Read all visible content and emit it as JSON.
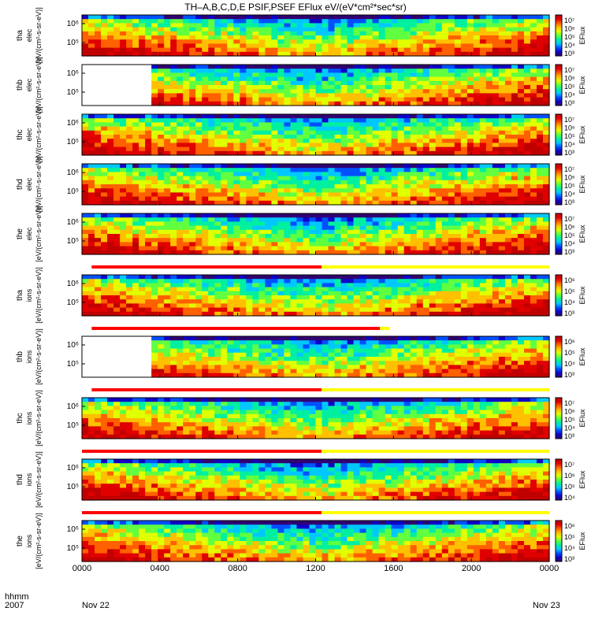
{
  "title": "TH–A,B,C,D,E PSIF,PSEF EFlux eV/(eV*cm²*sec*sr)",
  "footer": {
    "row1": "hhmm",
    "row2": "2007",
    "date_start": "Nov 22",
    "date_end": "Nov 23"
  },
  "colors": {
    "colormap": [
      "#300070",
      "#1000c8",
      "#0050ff",
      "#00c8ff",
      "#00f0a0",
      "#60ff40",
      "#e0ff00",
      "#ffc000",
      "#ff6000",
      "#e00000",
      "#c00000"
    ],
    "bar_red": "#ff0000",
    "bar_yellow": "#ffff00"
  },
  "chart_data": {
    "type": "heatmap",
    "title": "TH–A,B,C,D,E PSIF,PSEF EFlux eV/(eV*cm²*sec*sr)",
    "xlabel": "hhmm",
    "x_range": [
      0,
      2400
    ],
    "x_ticks": [
      "0000",
      "0400",
      "0800",
      "1200",
      "1600",
      "2000",
      "0000"
    ],
    "colorbar_label": "EFlux",
    "panels": [
      {
        "name": "tha",
        "species": "elec",
        "ylabel": "[eV/(cm²-s-sr-eV)]",
        "yticks": [
          "10⁶",
          "10⁵"
        ],
        "colorbar_ticks": [
          "10⁷",
          "10⁶",
          "10⁵",
          "10⁴",
          "10³"
        ],
        "data_start": 0
      },
      {
        "name": "thb",
        "species": "elec",
        "ylabel": "[eV/(cm²-s-sr-eV)]",
        "yticks": [
          "10⁶",
          "10⁵"
        ],
        "colorbar_ticks": [
          "10⁷",
          "10⁶",
          "10⁵",
          "10⁴",
          "10³"
        ],
        "data_start": 350
      },
      {
        "name": "thc",
        "species": "elec",
        "ylabel": "[eV/(cm²-s-sr-eV)]",
        "yticks": [
          "10⁶",
          "10⁵"
        ],
        "colorbar_ticks": [
          "10⁷",
          "10⁶",
          "10⁵",
          "10⁴",
          "10³"
        ],
        "data_start": 0
      },
      {
        "name": "thd",
        "species": "elec",
        "ylabel": "[eV/(cm²-s-sr-eV)]",
        "yticks": [
          "10⁶",
          "10⁵"
        ],
        "colorbar_ticks": [
          "10⁷",
          "10⁶",
          "10⁵",
          "10⁴",
          "10³"
        ],
        "data_start": 0
      },
      {
        "name": "the",
        "species": "elec",
        "ylabel": "[eV/(cm²-s-sr-eV)]",
        "yticks": [
          "10⁶",
          "10⁵"
        ],
        "colorbar_ticks": [
          "10⁷",
          "10⁶",
          "10⁵",
          "10⁴",
          "10³"
        ],
        "data_start": 0
      },
      {
        "name": "tha",
        "species": "ions",
        "ylabel": "[eV/(cm²-s-sr-eV)]",
        "yticks": [
          "10⁶",
          "10⁵"
        ],
        "colorbar_ticks": [
          "10⁶",
          "10⁵",
          "10⁴",
          "10³"
        ],
        "data_start": 0
      },
      {
        "name": "thb",
        "species": "ions",
        "ylabel": "[eV/(cm²-s-sr-eV)]",
        "yticks": [
          "10⁶",
          "10⁵"
        ],
        "colorbar_ticks": [
          "10⁶",
          "10⁵",
          "10⁴",
          "10³"
        ],
        "data_start": 350
      },
      {
        "name": "thc",
        "species": "ions",
        "ylabel": "[eV/(cm²-s-sr-eV)]",
        "yticks": [
          "10⁶",
          "10⁵"
        ],
        "colorbar_ticks": [
          "10⁷",
          "10⁶",
          "10⁵",
          "10⁴",
          "10³"
        ],
        "data_start": 0
      },
      {
        "name": "thd",
        "species": "ions",
        "ylabel": "[eV/(cm²-s-sr-eV)]",
        "yticks": [
          "10⁶",
          "10⁵"
        ],
        "colorbar_ticks": [
          "10⁷",
          "10⁶",
          "10⁵",
          "10⁴"
        ],
        "data_start": 0
      },
      {
        "name": "the",
        "species": "ions",
        "ylabel": "[eV/(cm²-s-sr-eV)]",
        "yticks": [
          "10⁶",
          "10⁵"
        ],
        "colorbar_ticks": [
          "10⁶",
          "10⁵",
          "10⁴",
          "10³"
        ],
        "data_start": 0
      }
    ],
    "mode_bars": [
      {
        "before_panel": 5,
        "red": [
          50,
          1230
        ],
        "yellow": [
          1230,
          2400
        ]
      },
      {
        "before_panel": 6,
        "red": [
          50,
          1530
        ],
        "yellow": [
          1530,
          1580
        ]
      },
      {
        "before_panel": 7,
        "red": [
          50,
          1230
        ],
        "yellow": [
          1230,
          2400
        ]
      },
      {
        "before_panel": 8,
        "red": [
          0,
          1230
        ],
        "yellow": [
          1230,
          2400
        ]
      },
      {
        "before_panel": 9,
        "red": [
          0,
          1230
        ],
        "yellow": [
          1230,
          2400
        ]
      }
    ]
  }
}
